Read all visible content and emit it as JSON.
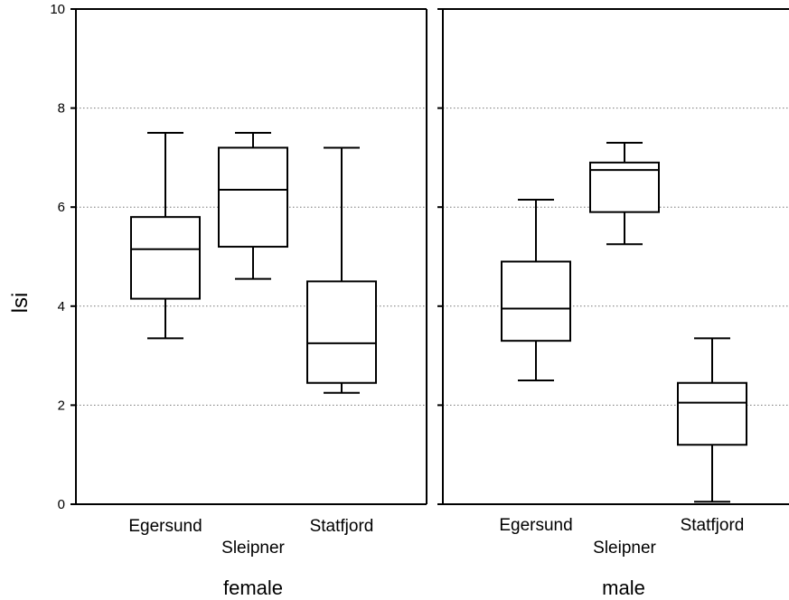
{
  "chart_data": {
    "type": "boxplot",
    "ylabel": "lsi",
    "ylim": [
      0,
      10
    ],
    "yticks": [
      0,
      2,
      4,
      6,
      8,
      10
    ],
    "grid": true,
    "panels": [
      {
        "name": "female",
        "categories": [
          "Egersund",
          "Sleipner",
          "Statfjord"
        ],
        "boxes": [
          {
            "category": "Egersund",
            "min": 3.35,
            "q1": 4.15,
            "median": 5.15,
            "q3": 5.8,
            "max": 7.5
          },
          {
            "category": "Sleipner",
            "min": 4.55,
            "q1": 5.2,
            "median": 6.35,
            "q3": 7.2,
            "max": 7.5
          },
          {
            "category": "Statfjord",
            "min": 2.25,
            "q1": 2.45,
            "median": 3.25,
            "q3": 4.5,
            "max": 7.2
          }
        ]
      },
      {
        "name": "male",
        "categories": [
          "Egersund",
          "Sleipner",
          "Statfjord"
        ],
        "boxes": [
          {
            "category": "Egersund",
            "min": 2.5,
            "q1": 3.3,
            "median": 3.95,
            "q3": 4.9,
            "max": 6.15
          },
          {
            "category": "Sleipner",
            "min": 5.25,
            "q1": 5.9,
            "median": 6.75,
            "q3": 6.9,
            "max": 7.3
          },
          {
            "category": "Statfjord",
            "min": 0.05,
            "q1": 1.2,
            "median": 2.05,
            "q3": 2.45,
            "max": 3.35
          }
        ]
      }
    ]
  }
}
